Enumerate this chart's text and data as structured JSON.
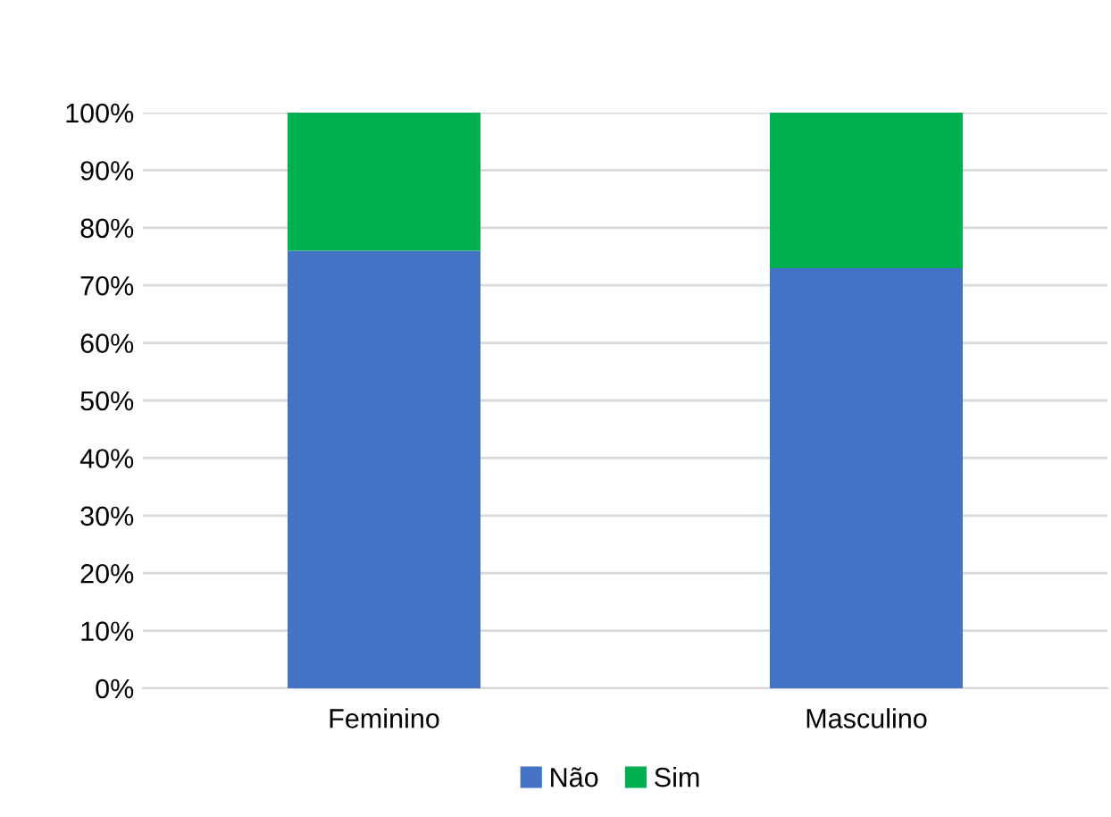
{
  "chart_data": {
    "type": "bar",
    "stacked": true,
    "categories": [
      "Feminino",
      "Masculino"
    ],
    "series": [
      {
        "name": "Não",
        "color": "#4472c4",
        "values": [
          76,
          73
        ]
      },
      {
        "name": "Sim",
        "color": "#00b050",
        "values": [
          24,
          27
        ]
      }
    ],
    "ylim": [
      0,
      100
    ],
    "yticks": [
      {
        "value": 0,
        "label": "0%"
      },
      {
        "value": 10,
        "label": "10%"
      },
      {
        "value": 20,
        "label": "20%"
      },
      {
        "value": 30,
        "label": "30%"
      },
      {
        "value": 40,
        "label": "40%"
      },
      {
        "value": 50,
        "label": "50%"
      },
      {
        "value": 60,
        "label": "60%"
      },
      {
        "value": 70,
        "label": "70%"
      },
      {
        "value": 80,
        "label": "80%"
      },
      {
        "value": 90,
        "label": "90%"
      },
      {
        "value": 100,
        "label": "100%"
      }
    ],
    "grid": "y",
    "legend": "bottom"
  }
}
